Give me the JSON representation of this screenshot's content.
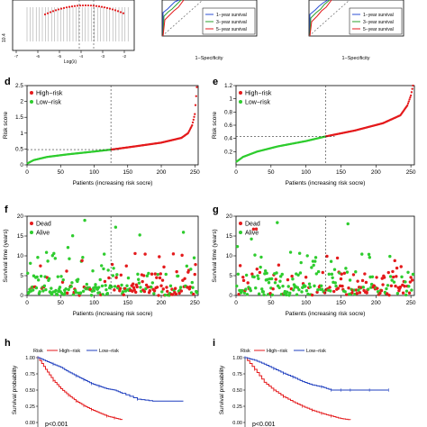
{
  "top_strip": {
    "left_y_tick": "10.4",
    "left_x_label": "Log(λ)",
    "left_x_ticks": [
      "-7",
      "-6",
      "-5",
      "-4",
      "-3",
      "-2"
    ],
    "roc_x_label": "1−Specificity",
    "roc_legend": [
      "1−year survival",
      "3−year survival",
      "5−year survival"
    ]
  },
  "colors": {
    "high": "#e41a1c",
    "low": "#2ecc2e",
    "dead": "#e41a1c",
    "alive": "#2ecc2e",
    "km_high": "#e41a1c",
    "km_low": "#1f3fbf",
    "y1": "#2b4fd6",
    "y3": "#2ca02c",
    "y5": "#e41a1c"
  },
  "panels": {
    "d": {
      "letter": "d",
      "ylabel": "Risk score",
      "xlabel": "Patients (increasing risk socre)",
      "legend": [
        "High−risk",
        "Low−risk"
      ]
    },
    "e": {
      "letter": "e",
      "ylabel": "Risk score",
      "xlabel": "Patients (increasing risk socre)",
      "legend": [
        "High−risk",
        "Low−risk"
      ]
    },
    "f": {
      "letter": "f",
      "ylabel": "Survival time (years)",
      "xlabel": "Patients (increasing risk socre)",
      "legend": [
        "Dead",
        "Alive"
      ]
    },
    "g": {
      "letter": "g",
      "ylabel": "Survival time (years)",
      "xlabel": "Patients (increasing risk socre)",
      "legend": [
        "Dead",
        "Alive"
      ]
    },
    "h": {
      "letter": "h",
      "ylabel": "Survival probability",
      "risk_label": "Risk",
      "legend": [
        "High−risk",
        "Low−risk"
      ],
      "pvalue": "p<0.001"
    },
    "i": {
      "letter": "i",
      "ylabel": "Survival probability",
      "risk_label": "Risk",
      "legend": [
        "High−risk",
        "Low−risk"
      ],
      "pvalue": "p<0.001"
    }
  },
  "chart_data": [
    {
      "id": "d",
      "type": "scatter",
      "x_range": [
        0,
        255
      ],
      "ylim": [
        0,
        2.5
      ],
      "x_ticks": [
        0,
        50,
        100,
        150,
        200,
        250
      ],
      "y_ticks": [
        0,
        0.5,
        1,
        1.5,
        2,
        2.5
      ],
      "cutoff_x": 125,
      "cutoff_y": 0.48,
      "n": 253,
      "curve_points": [
        [
          1,
          0.05
        ],
        [
          10,
          0.15
        ],
        [
          30,
          0.25
        ],
        [
          60,
          0.33
        ],
        [
          100,
          0.42
        ],
        [
          125,
          0.48
        ],
        [
          160,
          0.58
        ],
        [
          200,
          0.7
        ],
        [
          230,
          0.85
        ],
        [
          240,
          1.0
        ],
        [
          246,
          1.25
        ],
        [
          250,
          1.6
        ],
        [
          253,
          2.45
        ]
      ]
    },
    {
      "id": "e",
      "type": "scatter",
      "x_range": [
        0,
        255
      ],
      "ylim": [
        0,
        1.2
      ],
      "x_ticks": [
        0,
        50,
        100,
        150,
        200,
        250
      ],
      "y_ticks": [
        0.2,
        0.4,
        0.6,
        0.8,
        1.0,
        1.2
      ],
      "cutoff_x": 128,
      "cutoff_y": 0.43,
      "n": 253,
      "curve_points": [
        [
          1,
          0.05
        ],
        [
          10,
          0.12
        ],
        [
          30,
          0.2
        ],
        [
          60,
          0.28
        ],
        [
          100,
          0.36
        ],
        [
          128,
          0.43
        ],
        [
          170,
          0.52
        ],
        [
          210,
          0.63
        ],
        [
          235,
          0.75
        ],
        [
          245,
          0.9
        ],
        [
          250,
          1.05
        ],
        [
          253,
          1.2
        ]
      ]
    },
    {
      "id": "f",
      "type": "scatter",
      "x_range": [
        0,
        255
      ],
      "ylim": [
        0,
        20
      ],
      "x_ticks": [
        0,
        50,
        100,
        150,
        200,
        250
      ],
      "y_ticks": [
        0,
        5,
        10,
        15,
        20
      ],
      "cutoff_x": 125,
      "n_points": 253
    },
    {
      "id": "g",
      "type": "scatter",
      "x_range": [
        0,
        255
      ],
      "ylim": [
        0,
        20
      ],
      "x_ticks": [
        0,
        50,
        100,
        150,
        200,
        250
      ],
      "y_ticks": [
        0,
        5,
        10,
        15,
        20
      ],
      "cutoff_x": 128,
      "n_points": 253
    },
    {
      "id": "h",
      "type": "line",
      "ylim": [
        0,
        1
      ],
      "y_ticks": [
        "0.00",
        "0.25",
        "0.50",
        "0.75",
        "1.00"
      ],
      "series": [
        {
          "name": "High−risk",
          "x": [
            0,
            2,
            4,
            6,
            8,
            10,
            12,
            14,
            16,
            18,
            20,
            22
          ],
          "values": [
            1.0,
            0.82,
            0.65,
            0.52,
            0.42,
            0.33,
            0.26,
            0.2,
            0.15,
            0.1,
            0.07,
            0.04
          ]
        },
        {
          "name": "Low−risk",
          "x": [
            0,
            2,
            4,
            6,
            8,
            10,
            12,
            14,
            16,
            18,
            20,
            22,
            26,
            30,
            34,
            38
          ],
          "values": [
            1.0,
            0.95,
            0.9,
            0.85,
            0.78,
            0.72,
            0.66,
            0.6,
            0.56,
            0.52,
            0.5,
            0.45,
            0.36,
            0.33,
            0.33,
            0.33
          ]
        }
      ]
    },
    {
      "id": "i",
      "type": "line",
      "ylim": [
        0,
        1
      ],
      "y_ticks": [
        "0.00",
        "0.25",
        "0.50",
        "0.75",
        "1.00"
      ],
      "series": [
        {
          "name": "High−risk",
          "x": [
            0,
            2,
            4,
            6,
            8,
            10,
            12,
            14,
            16,
            18,
            20,
            22
          ],
          "values": [
            1.0,
            0.82,
            0.62,
            0.5,
            0.4,
            0.32,
            0.25,
            0.19,
            0.14,
            0.1,
            0.06,
            0.04
          ]
        },
        {
          "name": "Low−risk",
          "x": [
            0,
            2,
            4,
            6,
            8,
            10,
            12,
            14,
            16,
            18,
            20,
            22,
            26,
            30
          ],
          "values": [
            1.0,
            0.96,
            0.9,
            0.83,
            0.76,
            0.7,
            0.63,
            0.58,
            0.55,
            0.5,
            0.5,
            0.5,
            0.5,
            0.5
          ]
        }
      ]
    }
  ]
}
